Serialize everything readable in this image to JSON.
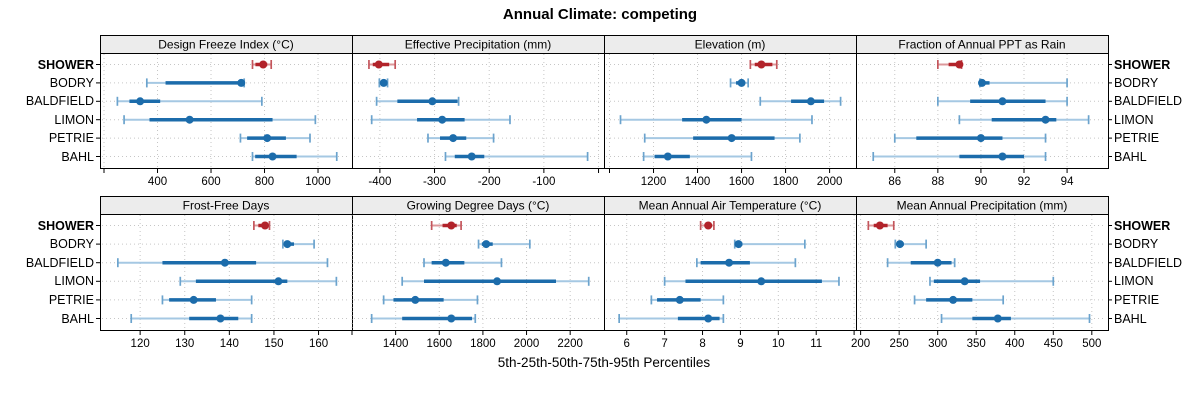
{
  "colors": {
    "highlight": "#b2232a",
    "highlight_light": "#dc989b",
    "highlight_cap": "#c4565c",
    "normal": "#1c6cab",
    "normal_light": "#a5c8e3",
    "normal_cap": "#6ba3cd",
    "strip_bg": "#ececec",
    "grid": "#c6c6c6",
    "frame": "#000000"
  },
  "chart_data": {
    "type": "dotplot",
    "title": "Annual Climate: competing",
    "caption": "5th-25th-50th-75th-95th Percentiles",
    "percentiles": [
      5,
      25,
      50,
      75,
      95
    ],
    "rows": [
      "SHOWER",
      "BODRY",
      "BALDFIELD",
      "LIMON",
      "PETRIE",
      "BAHL"
    ],
    "highlight_row": "SHOWER",
    "legend_position": "none",
    "grid": true,
    "panels": [
      {
        "title": "Design Freeze Index (°C)",
        "row": 0,
        "col": 0,
        "domain": [
          185,
          1127
        ],
        "ticks": [
          200,
          400,
          600,
          800,
          1000
        ],
        "tick_labels": [
          "",
          "400",
          "600",
          "800",
          "1000"
        ],
        "series": {
          "SHOWER": [
            755,
            766,
            795,
            810,
            825
          ],
          "BODRY": [
            360,
            430,
            713,
            720,
            724
          ],
          "BALDFIELD": [
            250,
            295,
            335,
            410,
            790
          ],
          "LIMON": [
            275,
            370,
            520,
            830,
            990
          ],
          "PETRIE": [
            710,
            735,
            810,
            880,
            970
          ],
          "BAHL": [
            755,
            765,
            830,
            920,
            1070
          ]
        }
      },
      {
        "title": "Effective Precipitation (mm)",
        "row": 0,
        "col": 1,
        "domain": [
          -451,
          10
        ],
        "ticks": [
          -400,
          -300,
          -200,
          -100,
          0
        ],
        "tick_labels": [
          "-400",
          "-300",
          "-200",
          "-100",
          ""
        ],
        "series": {
          "SHOWER": [
            -420,
            -413,
            -402,
            -383,
            -372
          ],
          "BODRY": [
            -401,
            -397,
            -393,
            -389,
            -386
          ],
          "BALDFIELD": [
            -406,
            -368,
            -304,
            -258,
            -256
          ],
          "LIMON": [
            -415,
            -332,
            -286,
            -245,
            -162
          ],
          "PETRIE": [
            -312,
            -290,
            -266,
            -242,
            -192
          ],
          "BAHL": [
            -280,
            -263,
            -232,
            -209,
            -20
          ]
        }
      },
      {
        "title": "Elevation (m)",
        "row": 0,
        "col": 2,
        "domain": [
          975,
          2120
        ],
        "ticks": [
          1000,
          1200,
          1400,
          1600,
          1800,
          2000
        ],
        "tick_labels": [
          "",
          "1200",
          "1400",
          "1600",
          "1800",
          "2000"
        ],
        "series": {
          "SHOWER": [
            1640,
            1660,
            1690,
            1740,
            1760
          ],
          "BODRY": [
            1550,
            1575,
            1600,
            1615,
            1630
          ],
          "BALDFIELD": [
            1685,
            1825,
            1915,
            1975,
            2050
          ],
          "LIMON": [
            1050,
            1330,
            1440,
            1600,
            1920
          ],
          "PETRIE": [
            1160,
            1380,
            1555,
            1750,
            1865
          ],
          "BAHL": [
            1155,
            1205,
            1265,
            1365,
            1645
          ]
        }
      },
      {
        "title": "Fraction of Annual PPT as Rain",
        "row": 0,
        "col": 3,
        "domain": [
          84.2,
          95.9
        ],
        "ticks": [
          86,
          88,
          90,
          92,
          94
        ],
        "tick_labels": [
          "86",
          "88",
          "90",
          "92",
          "94"
        ],
        "series": {
          "SHOWER": [
            88,
            88.5,
            89,
            89.05,
            89.1
          ],
          "BODRY": [
            89.95,
            90,
            90.05,
            90.4,
            94
          ],
          "BALDFIELD": [
            88,
            89.5,
            91,
            93,
            94
          ],
          "LIMON": [
            89,
            90.5,
            93,
            93.5,
            95
          ],
          "PETRIE": [
            86,
            87,
            90,
            91,
            93
          ],
          "BAHL": [
            85,
            89,
            91,
            92,
            93
          ]
        }
      },
      {
        "title": "Frost-Free Days",
        "row": 1,
        "col": 0,
        "domain": [
          111,
          167.5
        ],
        "ticks": [
          120,
          130,
          140,
          150,
          160
        ],
        "tick_labels": [
          "120",
          "130",
          "140",
          "150",
          "160"
        ],
        "series": {
          "SHOWER": [
            145.5,
            146.5,
            148,
            148.5,
            149
          ],
          "BODRY": [
            152,
            152.5,
            153,
            154.5,
            159
          ],
          "BALDFIELD": [
            115,
            125,
            139,
            146,
            162
          ],
          "LIMON": [
            129,
            132.5,
            151,
            153,
            164
          ],
          "PETRIE": [
            125,
            126.5,
            132,
            137,
            145
          ],
          "BAHL": [
            118,
            131,
            138,
            142,
            145
          ]
        }
      },
      {
        "title": "Growing Degree Days (°C)",
        "row": 1,
        "col": 1,
        "domain": [
          1200,
          2355
        ],
        "ticks": [
          1200,
          1400,
          1600,
          1800,
          2000,
          2200
        ],
        "tick_labels": [
          "",
          "1400",
          "1600",
          "1800",
          "2000",
          "2200"
        ],
        "series": {
          "SHOWER": [
            1565,
            1615,
            1655,
            1680,
            1700
          ],
          "BODRY": [
            1780,
            1795,
            1815,
            1845,
            2015
          ],
          "BALDFIELD": [
            1530,
            1565,
            1630,
            1715,
            1885
          ],
          "LIMON": [
            1430,
            1530,
            1865,
            2135,
            2285
          ],
          "PETRIE": [
            1345,
            1390,
            1490,
            1620,
            1775
          ],
          "BAHL": [
            1290,
            1430,
            1655,
            1750,
            1765
          ]
        }
      },
      {
        "title": "Mean Annual Air Temperature (°C)",
        "row": 1,
        "col": 2,
        "domain": [
          5.4,
          12.05
        ],
        "ticks": [
          6,
          7,
          8,
          9,
          10,
          11,
          12
        ],
        "tick_labels": [
          "6",
          "7",
          "8",
          "9",
          "10",
          "11",
          ""
        ],
        "series": {
          "SHOWER": [
            7.95,
            8.05,
            8.15,
            8.25,
            8.3
          ],
          "BODRY": [
            8.85,
            8.9,
            8.95,
            9.05,
            10.7
          ],
          "BALDFIELD": [
            7.85,
            7.95,
            8.7,
            9.25,
            10.45
          ],
          "LIMON": [
            7.0,
            7.55,
            9.55,
            11.15,
            11.6
          ],
          "PETRIE": [
            6.65,
            6.8,
            7.4,
            7.95,
            8.55
          ],
          "BAHL": [
            5.8,
            7.35,
            8.15,
            8.45,
            8.55
          ]
        }
      },
      {
        "title": "Mean Annual Precipitation (mm)",
        "row": 1,
        "col": 3,
        "domain": [
          194,
          521
        ],
        "ticks": [
          200,
          250,
          300,
          350,
          400,
          450,
          500
        ],
        "tick_labels": [
          "200",
          "250",
          "300",
          "350",
          "400",
          "450",
          "500"
        ],
        "series": {
          "SHOWER": [
            210,
            217,
            225,
            235,
            243
          ],
          "BODRY": [
            245,
            248,
            251,
            256,
            285
          ],
          "BALDFIELD": [
            235,
            265,
            300,
            318,
            322
          ],
          "LIMON": [
            290,
            295,
            335,
            355,
            450
          ],
          "PETRIE": [
            270,
            285,
            320,
            345,
            385
          ],
          "BAHL": [
            305,
            345,
            378,
            395,
            497
          ]
        }
      }
    ]
  }
}
